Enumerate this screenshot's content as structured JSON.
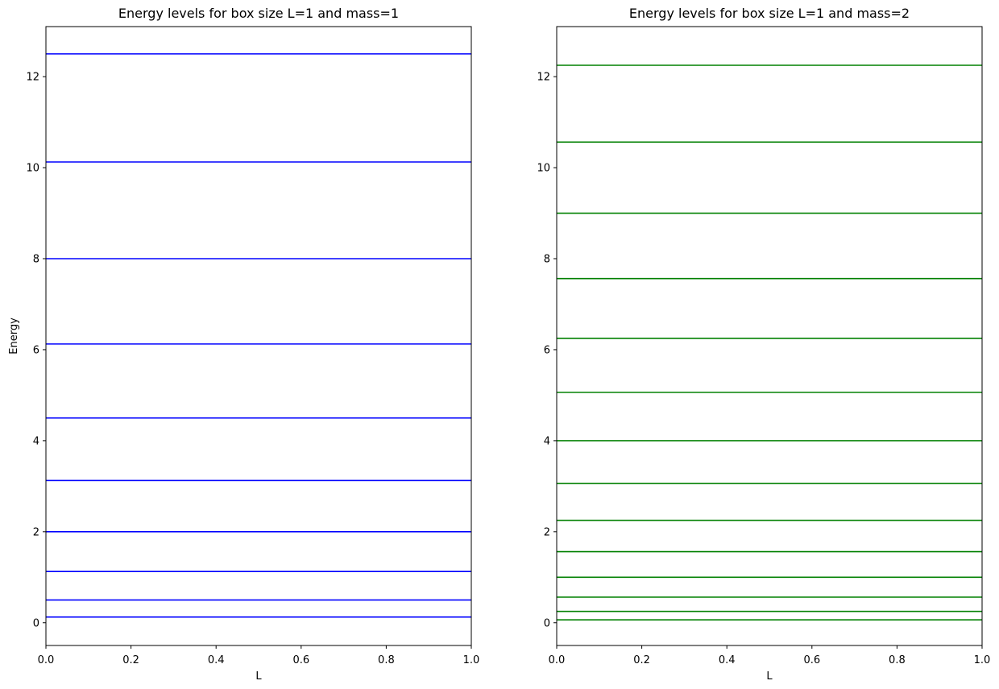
{
  "chart_data": [
    {
      "type": "line",
      "title": "Energy levels for box size L=1 and mass=1",
      "xlabel": "L",
      "ylabel": "Energy",
      "xlim": [
        0,
        1
      ],
      "ylim": [
        -0.5,
        13.1
      ],
      "xticks": [
        0,
        0.2,
        0.4,
        0.6,
        0.8,
        1
      ],
      "xtick_labels": [
        "0.0",
        "0.2",
        "0.4",
        "0.6",
        "0.8",
        "1.0"
      ],
      "yticks": [
        0,
        2,
        4,
        6,
        8,
        10,
        12
      ],
      "ytick_labels": [
        "0",
        "2",
        "4",
        "6",
        "8",
        "10",
        "12"
      ],
      "grid": false,
      "legend": "none",
      "color": "#0000ff",
      "levels": [
        0.125,
        0.5,
        1.125,
        2.0,
        3.125,
        4.5,
        6.125,
        8.0,
        10.125,
        12.5
      ]
    },
    {
      "type": "line",
      "title": "Energy levels for box size L=1 and mass=2",
      "xlabel": "L",
      "ylabel": "",
      "xlim": [
        0,
        1
      ],
      "ylim": [
        -0.5,
        13.1
      ],
      "xticks": [
        0,
        0.2,
        0.4,
        0.6,
        0.8,
        1
      ],
      "xtick_labels": [
        "0.0",
        "0.2",
        "0.4",
        "0.6",
        "0.8",
        "1.0"
      ],
      "yticks": [
        0,
        2,
        4,
        6,
        8,
        10,
        12
      ],
      "ytick_labels": [
        "0",
        "2",
        "4",
        "6",
        "8",
        "10",
        "12"
      ],
      "grid": false,
      "legend": "none",
      "color": "#008000",
      "levels": [
        0.0625,
        0.25,
        0.5625,
        1.0,
        1.5625,
        2.25,
        3.0625,
        4.0,
        5.0625,
        6.25,
        7.5625,
        9.0,
        10.5625,
        12.25
      ]
    }
  ]
}
